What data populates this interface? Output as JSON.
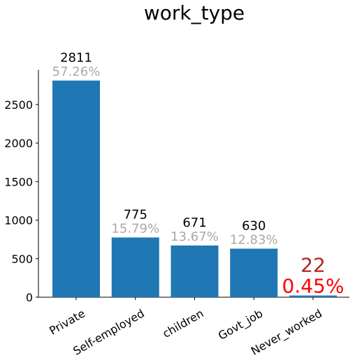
{
  "chart_data": {
    "type": "bar",
    "title": "work_type",
    "xlabel": "",
    "ylabel": "",
    "categories": [
      "Private",
      "Self-employed",
      "children",
      "Govt_job",
      "Never_worked"
    ],
    "values": [
      2811,
      775,
      671,
      630,
      22
    ],
    "percent_labels": [
      "57.26%",
      "15.79%",
      "13.67%",
      "12.83%",
      "0.45%"
    ],
    "value_labels": [
      "2811",
      "775",
      "671",
      "630",
      "22"
    ],
    "yticks": [
      0,
      500,
      1000,
      1500,
      2000,
      2500
    ],
    "ylim": [
      0,
      2900
    ],
    "grid": false,
    "legend": "none",
    "highlight_index": 4,
    "colors": {
      "bar": "#1f77b4",
      "count_label": "#000000",
      "percent_label": "#a9a9a9",
      "highlight_count": "#b22222",
      "highlight_percent": "#ff0000",
      "axis": "#000000"
    }
  }
}
